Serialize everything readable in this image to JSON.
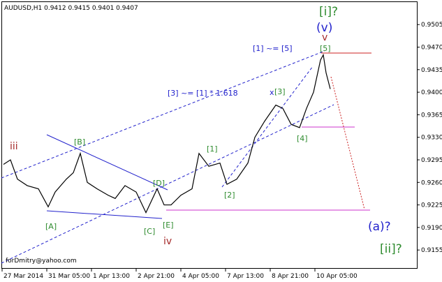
{
  "chart_data": {
    "type": "line",
    "title": "AUDUSD,H1  0.9412 0.9415 0.9401 0.9407",
    "x": [
      1,
      6,
      11,
      18,
      26,
      33,
      38,
      46,
      51,
      56,
      61,
      68,
      76,
      81,
      88,
      96,
      103,
      111,
      116,
      121,
      128,
      136,
      141,
      148,
      156,
      161,
      168,
      176,
      181,
      188,
      196,
      201,
      207,
      213,
      218,
      223,
      228,
      230,
      232,
      235
    ],
    "series": [
      {
        "color": "#000000",
        "values": [
          0.9288,
          0.9295,
          0.9265,
          0.9255,
          0.925,
          0.9222,
          0.9245,
          0.9265,
          0.9275,
          0.9305,
          0.926,
          0.925,
          0.924,
          0.9235,
          0.9255,
          0.9245,
          0.9213,
          0.925,
          0.9225,
          0.9225,
          0.924,
          0.925,
          0.9305,
          0.9285,
          0.929,
          0.9257,
          0.9265,
          0.929,
          0.933,
          0.9355,
          0.938,
          0.9375,
          0.935,
          0.9345,
          0.9375,
          0.94,
          0.945,
          0.9458,
          0.943,
          0.9405
        ]
      }
    ],
    "xlim": [
      0,
      297
    ],
    "ylim": [
      0.9127,
      0.9541
    ],
    "xticks": [
      {
        "value": 0,
        "label": "27 Mar 2014"
      },
      {
        "value": 32,
        "label": "31 Mar 05:00"
      },
      {
        "value": 64,
        "label": "1 Apr 13:00"
      },
      {
        "value": 96,
        "label": "2 Apr 21:00"
      },
      {
        "value": 128,
        "label": "4 Apr 05:00"
      },
      {
        "value": 160,
        "label": "7 Apr 13:00"
      },
      {
        "value": 192,
        "label": "8 Apr 21:00"
      },
      {
        "value": 224,
        "label": "10 Apr 05:00"
      }
    ],
    "yticks": [
      {
        "value": 0.9505,
        "label": "0.9505"
      },
      {
        "value": 0.947,
        "label": "0.9470"
      },
      {
        "value": 0.9435,
        "label": "0.9435"
      },
      {
        "value": 0.94,
        "label": "0.9400"
      },
      {
        "value": 0.9365,
        "label": "0.9365"
      },
      {
        "value": 0.933,
        "label": "0.9330"
      },
      {
        "value": 0.9295,
        "label": "0.9295"
      },
      {
        "value": 0.926,
        "label": "0.9260"
      },
      {
        "value": 0.9225,
        "label": "0.9225"
      },
      {
        "value": 0.919,
        "label": "0.9190"
      },
      {
        "value": 0.9155,
        "label": "0.9155"
      }
    ],
    "annotations": [
      "iii",
      "[B]",
      "[A]",
      "[C]",
      "[D]",
      "[E]",
      "iv",
      "[1]",
      "[2]",
      "x",
      "[3]",
      "[4]",
      "[5]",
      "v",
      "(v)",
      "[i]?",
      "(a)?",
      "[ii]?",
      "[1] ~= [5]",
      "[3] ~= [1] * 1.618"
    ],
    "watermark": "forDmitry@yahoo.com"
  }
}
